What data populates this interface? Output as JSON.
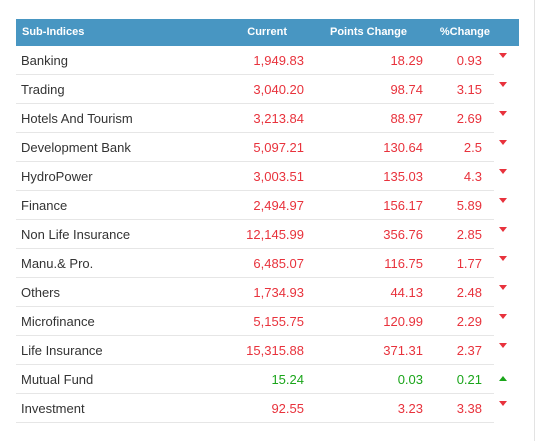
{
  "header": {
    "sub_indices": "Sub-Indices",
    "current": "Current",
    "points_change": "Points Change",
    "pct_change": "%Change"
  },
  "colors": {
    "header_bg": "#4896c2",
    "down": "#e8323c",
    "up": "#1aa51a"
  },
  "rows": [
    {
      "name": "Banking",
      "current": "1,949.83",
      "points": "18.29",
      "pct": "0.93",
      "direction": "down"
    },
    {
      "name": "Trading",
      "current": "3,040.20",
      "points": "98.74",
      "pct": "3.15",
      "direction": "down"
    },
    {
      "name": "Hotels And Tourism",
      "current": "3,213.84",
      "points": "88.97",
      "pct": "2.69",
      "direction": "down"
    },
    {
      "name": "Development Bank",
      "current": "5,097.21",
      "points": "130.64",
      "pct": "2.5",
      "direction": "down"
    },
    {
      "name": "HydroPower",
      "current": "3,003.51",
      "points": "135.03",
      "pct": "4.3",
      "direction": "down"
    },
    {
      "name": "Finance",
      "current": "2,494.97",
      "points": "156.17",
      "pct": "5.89",
      "direction": "down"
    },
    {
      "name": "Non Life Insurance",
      "current": "12,145.99",
      "points": "356.76",
      "pct": "2.85",
      "direction": "down"
    },
    {
      "name": "Manu.& Pro.",
      "current": "6,485.07",
      "points": "116.75",
      "pct": "1.77",
      "direction": "down"
    },
    {
      "name": "Others",
      "current": "1,734.93",
      "points": "44.13",
      "pct": "2.48",
      "direction": "down"
    },
    {
      "name": "Microfinance",
      "current": "5,155.75",
      "points": "120.99",
      "pct": "2.29",
      "direction": "down"
    },
    {
      "name": "Life Insurance",
      "current": "15,315.88",
      "points": "371.31",
      "pct": "2.37",
      "direction": "down"
    },
    {
      "name": "Mutual Fund",
      "current": "15.24",
      "points": "0.03",
      "pct": "0.21",
      "direction": "up"
    },
    {
      "name": "Investment",
      "current": "92.55",
      "points": "3.23",
      "pct": "3.38",
      "direction": "down"
    }
  ]
}
